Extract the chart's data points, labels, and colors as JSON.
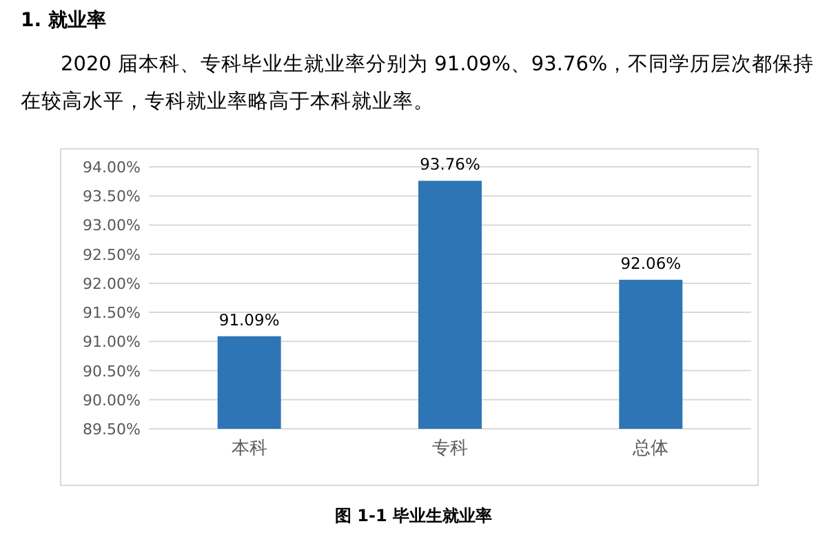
{
  "chart_data": {
    "type": "bar",
    "title": "1.   就业率",
    "subtitle": "2020 届本科、专科毕业生就业率分别为 91.09%、93.76%，不同学历层次都保持在较高水平，专科就业率略高于本科就业率。",
    "categories": [
      "本科",
      "专科",
      "总体"
    ],
    "values": [
      91.09,
      93.76,
      92.06
    ],
    "value_labels": [
      "91.09%",
      "93.76%",
      "92.06%"
    ],
    "color": "#2e75b6",
    "ylim": [
      89.5,
      94.0
    ],
    "yticks": [
      {
        "value": 89.5,
        "label": "89.50%"
      },
      {
        "value": 90.0,
        "label": "90.00%"
      },
      {
        "value": 90.5,
        "label": "90.50%"
      },
      {
        "value": 91.0,
        "label": "91.00%"
      },
      {
        "value": 91.5,
        "label": "91.50%"
      },
      {
        "value": 92.0,
        "label": "92.00%"
      },
      {
        "value": 92.5,
        "label": "92.50%"
      },
      {
        "value": 93.0,
        "label": "93.00%"
      },
      {
        "value": 93.5,
        "label": "93.50%"
      },
      {
        "value": 94.0,
        "label": "94.00%"
      }
    ],
    "grid": "y",
    "annotations": [
      "图 1-1  毕业生就业率"
    ]
  }
}
